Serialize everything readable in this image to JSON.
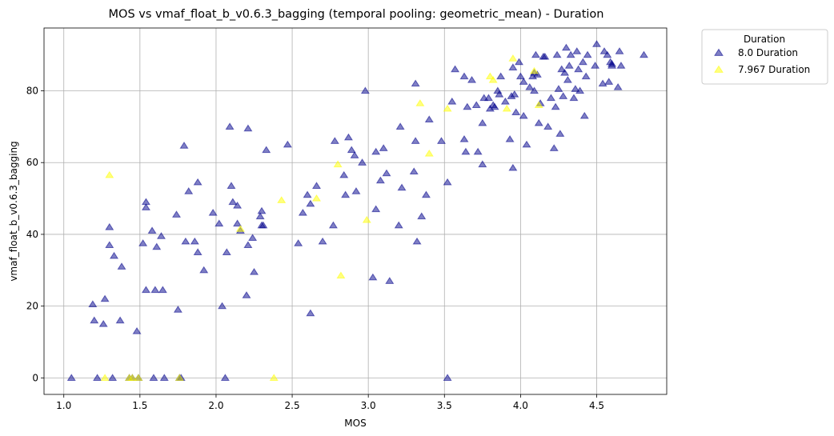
{
  "chart_data": {
    "type": "scatter",
    "title": "MOS vs vmaf_float_b_v0.6.3_bagging (temporal pooling: geometric_mean) - Duration",
    "xlabel": "MOS",
    "ylabel": "vmaf_float_b_v0.6.3_bagging",
    "xlim": [
      0.87,
      4.96
    ],
    "ylim": [
      -4.6,
      97.5
    ],
    "xticks": [
      1.0,
      1.5,
      2.0,
      2.5,
      3.0,
      3.5,
      4.0,
      4.5
    ],
    "xtick_labels": [
      "1.0",
      "1.5",
      "2.0",
      "2.5",
      "3.0",
      "3.5",
      "4.0",
      "4.5"
    ],
    "yticks": [
      0,
      20,
      40,
      60,
      80
    ],
    "ytick_labels": [
      "0",
      "20",
      "40",
      "60",
      "80"
    ],
    "grid": true,
    "marker": "triangle",
    "legend": {
      "title": "Duration",
      "placement": "outside-top-right"
    },
    "series": [
      {
        "name": "8.0 Duration",
        "color": "#00008b",
        "points": [
          [
            1.05,
            0
          ],
          [
            1.19,
            20.5
          ],
          [
            1.2,
            16
          ],
          [
            1.22,
            0
          ],
          [
            1.26,
            15
          ],
          [
            1.27,
            22
          ],
          [
            1.3,
            42
          ],
          [
            1.3,
            37
          ],
          [
            1.32,
            0
          ],
          [
            1.33,
            34
          ],
          [
            1.37,
            16
          ],
          [
            1.38,
            31
          ],
          [
            1.43,
            0
          ],
          [
            1.45,
            0
          ],
          [
            1.48,
            13
          ],
          [
            1.49,
            0
          ],
          [
            1.52,
            37.5
          ],
          [
            1.54,
            49
          ],
          [
            1.54,
            47.5
          ],
          [
            1.54,
            24.5
          ],
          [
            1.58,
            41
          ],
          [
            1.59,
            0
          ],
          [
            1.6,
            24.5
          ],
          [
            1.61,
            36.5
          ],
          [
            1.64,
            39.5
          ],
          [
            1.65,
            24.5
          ],
          [
            1.66,
            0
          ],
          [
            1.74,
            45.5
          ],
          [
            1.75,
            19
          ],
          [
            1.76,
            0
          ],
          [
            1.77,
            0
          ],
          [
            1.79,
            64.7
          ],
          [
            1.8,
            38
          ],
          [
            1.82,
            52
          ],
          [
            1.86,
            38
          ],
          [
            1.88,
            35
          ],
          [
            1.88,
            54.5
          ],
          [
            1.92,
            30
          ],
          [
            1.98,
            46
          ],
          [
            2.02,
            43
          ],
          [
            2.04,
            20
          ],
          [
            2.06,
            0
          ],
          [
            2.07,
            35
          ],
          [
            2.09,
            70
          ],
          [
            2.1,
            53.5
          ],
          [
            2.11,
            49
          ],
          [
            2.14,
            48
          ],
          [
            2.14,
            43
          ],
          [
            2.16,
            41
          ],
          [
            2.2,
            23
          ],
          [
            2.21,
            69.5
          ],
          [
            2.21,
            37
          ],
          [
            2.24,
            39
          ],
          [
            2.25,
            29.5
          ],
          [
            2.29,
            45
          ],
          [
            2.3,
            42.5
          ],
          [
            2.3,
            46.5
          ],
          [
            2.31,
            42.5
          ],
          [
            2.33,
            63.5
          ],
          [
            2.47,
            65
          ],
          [
            2.54,
            37.5
          ],
          [
            2.57,
            46
          ],
          [
            2.6,
            51
          ],
          [
            2.62,
            48.5
          ],
          [
            2.62,
            18
          ],
          [
            2.66,
            53.5
          ],
          [
            2.7,
            38
          ],
          [
            2.77,
            42.5
          ],
          [
            2.78,
            66
          ],
          [
            2.84,
            56.5
          ],
          [
            2.85,
            51
          ],
          [
            2.87,
            67
          ],
          [
            2.89,
            63.5
          ],
          [
            2.91,
            62
          ],
          [
            2.92,
            52
          ],
          [
            2.96,
            60
          ],
          [
            2.98,
            80
          ],
          [
            3.03,
            28
          ],
          [
            3.05,
            63
          ],
          [
            3.05,
            47
          ],
          [
            3.08,
            55
          ],
          [
            3.1,
            64
          ],
          [
            3.12,
            57
          ],
          [
            3.14,
            27
          ],
          [
            3.2,
            42.5
          ],
          [
            3.21,
            70
          ],
          [
            3.22,
            53
          ],
          [
            3.3,
            57.5
          ],
          [
            3.31,
            82
          ],
          [
            3.31,
            66
          ],
          [
            3.32,
            38
          ],
          [
            3.35,
            45
          ],
          [
            3.38,
            51
          ],
          [
            3.4,
            72
          ],
          [
            3.48,
            66
          ],
          [
            3.52,
            54.5
          ],
          [
            3.52,
            0
          ],
          [
            3.55,
            77
          ],
          [
            3.57,
            86
          ],
          [
            3.63,
            84
          ],
          [
            3.63,
            66.5
          ],
          [
            3.64,
            63
          ],
          [
            3.65,
            75.5
          ],
          [
            3.68,
            83
          ],
          [
            3.71,
            76
          ],
          [
            3.72,
            63
          ],
          [
            3.75,
            59.5
          ],
          [
            3.75,
            71
          ],
          [
            3.76,
            78
          ],
          [
            3.79,
            78
          ],
          [
            3.8,
            75
          ],
          [
            3.82,
            76
          ],
          [
            3.83,
            75.5
          ],
          [
            3.85,
            80
          ],
          [
            3.86,
            79
          ],
          [
            3.87,
            84
          ],
          [
            3.9,
            77
          ],
          [
            3.93,
            66.5
          ],
          [
            3.94,
            78.5
          ],
          [
            3.95,
            58.5
          ],
          [
            3.95,
            86.5
          ],
          [
            3.96,
            79
          ],
          [
            3.97,
            74
          ],
          [
            3.99,
            88
          ],
          [
            4.0,
            84
          ],
          [
            4.02,
            73
          ],
          [
            4.02,
            82.5
          ],
          [
            4.04,
            65
          ],
          [
            4.06,
            81
          ],
          [
            4.08,
            84
          ],
          [
            4.09,
            85
          ],
          [
            4.09,
            80
          ],
          [
            4.1,
            90
          ],
          [
            4.11,
            84.5
          ],
          [
            4.12,
            71
          ],
          [
            4.13,
            76.5
          ],
          [
            4.15,
            89.5
          ],
          [
            4.16,
            89.5
          ],
          [
            4.18,
            70
          ],
          [
            4.2,
            78
          ],
          [
            4.22,
            64
          ],
          [
            4.23,
            75.5
          ],
          [
            4.24,
            90
          ],
          [
            4.25,
            80.5
          ],
          [
            4.26,
            68
          ],
          [
            4.27,
            86
          ],
          [
            4.28,
            78.5
          ],
          [
            4.29,
            85
          ],
          [
            4.3,
            92
          ],
          [
            4.31,
            83
          ],
          [
            4.32,
            87
          ],
          [
            4.33,
            90
          ],
          [
            4.35,
            78
          ],
          [
            4.36,
            80.5
          ],
          [
            4.37,
            91
          ],
          [
            4.38,
            86
          ],
          [
            4.39,
            80
          ],
          [
            4.41,
            88
          ],
          [
            4.42,
            73
          ],
          [
            4.43,
            84
          ],
          [
            4.44,
            90
          ],
          [
            4.49,
            87
          ],
          [
            4.5,
            93
          ],
          [
            4.54,
            82
          ],
          [
            4.55,
            91
          ],
          [
            4.57,
            90
          ],
          [
            4.58,
            82.5
          ],
          [
            4.59,
            88
          ],
          [
            4.6,
            87.5
          ],
          [
            4.6,
            87
          ],
          [
            4.64,
            81
          ],
          [
            4.65,
            91
          ],
          [
            4.66,
            87
          ],
          [
            4.81,
            90
          ]
        ]
      },
      {
        "name": "7.967 Duration",
        "color": "#ffff00",
        "points": [
          [
            1.27,
            0
          ],
          [
            1.3,
            56.5
          ],
          [
            1.43,
            0
          ],
          [
            1.45,
            0
          ],
          [
            1.49,
            0
          ],
          [
            1.76,
            0
          ],
          [
            2.16,
            41.5
          ],
          [
            2.38,
            0
          ],
          [
            2.43,
            49.5
          ],
          [
            2.66,
            50
          ],
          [
            2.8,
            59.5
          ],
          [
            2.82,
            28.5
          ],
          [
            2.99,
            44
          ],
          [
            3.34,
            76.5
          ],
          [
            3.4,
            62.5
          ],
          [
            3.52,
            75
          ],
          [
            3.8,
            84
          ],
          [
            3.82,
            83
          ],
          [
            3.91,
            75
          ],
          [
            3.95,
            89
          ],
          [
            4.09,
            85.5
          ],
          [
            4.12,
            76
          ]
        ]
      }
    ]
  }
}
